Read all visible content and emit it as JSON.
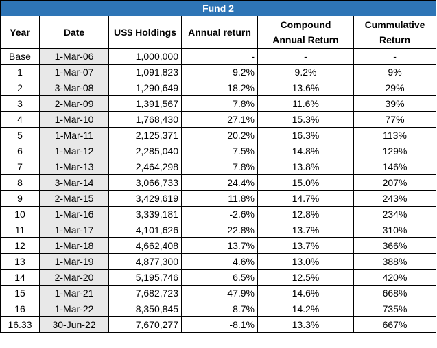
{
  "title": "Fund 2",
  "headers": {
    "year": "Year",
    "date": "Date",
    "holdings": "US$ Holdings",
    "annual_return": "Annual return",
    "compound_line1": "Compound",
    "compound_line2": "Annual Return",
    "cumulative_line1": "Cummulative",
    "cumulative_line2": "Return"
  },
  "rows": [
    {
      "year": "Base",
      "date": "1-Mar-06",
      "holdings": "1,000,000",
      "annual": "-",
      "cagr": "-",
      "cum": "-"
    },
    {
      "year": "1",
      "date": "1-Mar-07",
      "holdings": "1,091,823",
      "annual": "9.2%",
      "cagr": "9.2%",
      "cum": "9%"
    },
    {
      "year": "2",
      "date": "3-Mar-08",
      "holdings": "1,290,649",
      "annual": "18.2%",
      "cagr": "13.6%",
      "cum": "29%"
    },
    {
      "year": "3",
      "date": "2-Mar-09",
      "holdings": "1,391,567",
      "annual": "7.8%",
      "cagr": "11.6%",
      "cum": "39%"
    },
    {
      "year": "4",
      "date": "1-Mar-10",
      "holdings": "1,768,430",
      "annual": "27.1%",
      "cagr": "15.3%",
      "cum": "77%"
    },
    {
      "year": "5",
      "date": "1-Mar-11",
      "holdings": "2,125,371",
      "annual": "20.2%",
      "cagr": "16.3%",
      "cum": "113%"
    },
    {
      "year": "6",
      "date": "1-Mar-12",
      "holdings": "2,285,040",
      "annual": "7.5%",
      "cagr": "14.8%",
      "cum": "129%"
    },
    {
      "year": "7",
      "date": "1-Mar-13",
      "holdings": "2,464,298",
      "annual": "7.8%",
      "cagr": "13.8%",
      "cum": "146%"
    },
    {
      "year": "8",
      "date": "3-Mar-14",
      "holdings": "3,066,733",
      "annual": "24.4%",
      "cagr": "15.0%",
      "cum": "207%"
    },
    {
      "year": "9",
      "date": "2-Mar-15",
      "holdings": "3,429,619",
      "annual": "11.8%",
      "cagr": "14.7%",
      "cum": "243%"
    },
    {
      "year": "10",
      "date": "1-Mar-16",
      "holdings": "3,339,181",
      "annual": "-2.6%",
      "cagr": "12.8%",
      "cum": "234%"
    },
    {
      "year": "11",
      "date": "1-Mar-17",
      "holdings": "4,101,626",
      "annual": "22.8%",
      "cagr": "13.7%",
      "cum": "310%"
    },
    {
      "year": "12",
      "date": "1-Mar-18",
      "holdings": "4,662,408",
      "annual": "13.7%",
      "cagr": "13.7%",
      "cum": "366%"
    },
    {
      "year": "13",
      "date": "1-Mar-19",
      "holdings": "4,877,300",
      "annual": "4.6%",
      "cagr": "13.0%",
      "cum": "388%"
    },
    {
      "year": "14",
      "date": "2-Mar-20",
      "holdings": "5,195,746",
      "annual": "6.5%",
      "cagr": "12.5%",
      "cum": "420%"
    },
    {
      "year": "15",
      "date": "1-Mar-21",
      "holdings": "7,682,723",
      "annual": "47.9%",
      "cagr": "14.6%",
      "cum": "668%"
    },
    {
      "year": "16",
      "date": "1-Mar-22",
      "holdings": "8,350,845",
      "annual": "8.7%",
      "cagr": "14.2%",
      "cum": "735%"
    },
    {
      "year": "16.33",
      "date": "30-Jun-22",
      "holdings": "7,670,277",
      "annual": "-8.1%",
      "cagr": "13.3%",
      "cum": "667%"
    }
  ],
  "colors": {
    "title_background": "#2e75b6",
    "title_text": "#ffffff",
    "date_column_fill": "#e8e8e8"
  }
}
